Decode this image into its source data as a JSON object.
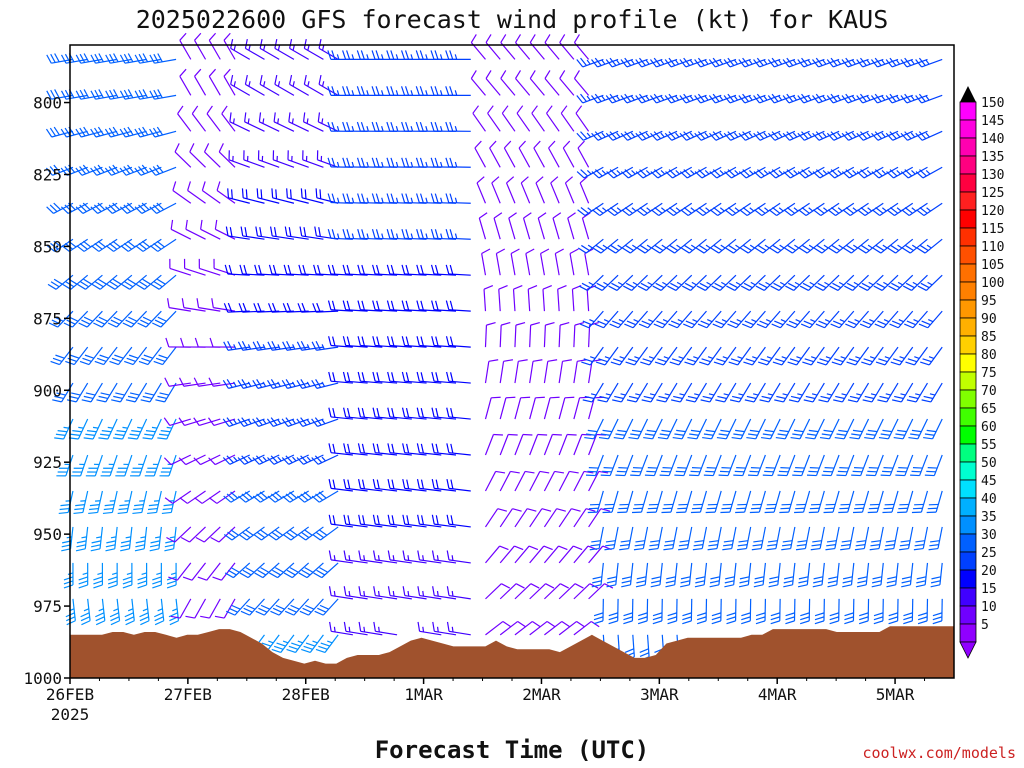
{
  "chart_data": {
    "type": "wind-barb-profile",
    "title": "2025022600 GFS forecast wind profile (kt) for KAUS",
    "xlabel": "Forecast Time (UTC)",
    "credit": "coolwx.com/models",
    "start_date": "26FEB",
    "start_year": "2025",
    "x_tick_labels": [
      "26FEB",
      "27FEB",
      "28FEB",
      "1MAR",
      "2MAR",
      "3MAR",
      "4MAR",
      "5MAR"
    ],
    "y_tick_labels": [
      "800",
      "825",
      "850",
      "875",
      "900",
      "925",
      "950",
      "975",
      "1000"
    ],
    "y_ticks": [
      800,
      825,
      850,
      875,
      900,
      925,
      950,
      975,
      1000
    ],
    "y_range_hPa": [
      1000,
      780
    ],
    "colorbar": {
      "labels": [
        "150",
        "145",
        "140",
        "135",
        "130",
        "125",
        "120",
        "115",
        "110",
        "105",
        "100",
        "95",
        "90",
        "85",
        "80",
        "75",
        "70",
        "65",
        "60",
        "55",
        "50",
        "45",
        "40",
        "35",
        "30",
        "25",
        "20",
        "15",
        "10",
        "5"
      ],
      "colors": [
        "#ff00ff",
        "#ff00e0",
        "#ff00b0",
        "#ff0080",
        "#ff0040",
        "#ff2020",
        "#ff0000",
        "#ff3000",
        "#ff5000",
        "#ff7000",
        "#ff8000",
        "#ff9800",
        "#ffb000",
        "#ffd000",
        "#ffff00",
        "#c0ff00",
        "#80ff00",
        "#40ff00",
        "#00ff00",
        "#00ff80",
        "#00ffd0",
        "#00e0ff",
        "#00b0ff",
        "#0090ff",
        "#0060ff",
        "#0040ff",
        "#0000ff",
        "#4000ff",
        "#7000ff",
        "#9000ff"
      ]
    },
    "surface_pressure_hPa": [
      985,
      985,
      985,
      985,
      984,
      984,
      985,
      984,
      984,
      985,
      986,
      985,
      985,
      984,
      983,
      983,
      984,
      986,
      988,
      991,
      993,
      994,
      995,
      994,
      995,
      995,
      993,
      992,
      992,
      992,
      991,
      989,
      987,
      986,
      987,
      988,
      989,
      989,
      989,
      989,
      987,
      989,
      990,
      990,
      990,
      990,
      991,
      989,
      987,
      985,
      987,
      989,
      991,
      993,
      993,
      992,
      988,
      987,
      986,
      986,
      986,
      986,
      986,
      986,
      985,
      985,
      983,
      983,
      983,
      983,
      983,
      983,
      984,
      984,
      984,
      984,
      984,
      982,
      982,
      982,
      982,
      982,
      982,
      982
    ],
    "wind_regimes": [
      {
        "from_day": 0.0,
        "to_day": 1.0,
        "low_dir": 160,
        "low_spd": 35,
        "high_dir": 260,
        "high_spd": 30
      },
      {
        "from_day": 1.0,
        "to_day": 1.5,
        "low_dir": 190,
        "low_spd": 10,
        "high_dir": 330,
        "high_spd": 10
      },
      {
        "from_day": 1.5,
        "to_day": 2.3,
        "low_dir": 210,
        "low_spd": 35,
        "high_dir": 300,
        "high_spd": 15
      },
      {
        "from_day": 2.3,
        "to_day": 3.5,
        "low_dir": 280,
        "low_spd": 15,
        "high_dir": 270,
        "high_spd": 25
      },
      {
        "from_day": 3.5,
        "to_day": 4.5,
        "low_dir": 60,
        "low_spd": 10,
        "high_dir": 320,
        "high_spd": 10
      },
      {
        "from_day": 4.5,
        "to_day": 8.0,
        "low_dir": 170,
        "low_spd": 30,
        "high_dir": 250,
        "high_spd": 25
      }
    ]
  }
}
